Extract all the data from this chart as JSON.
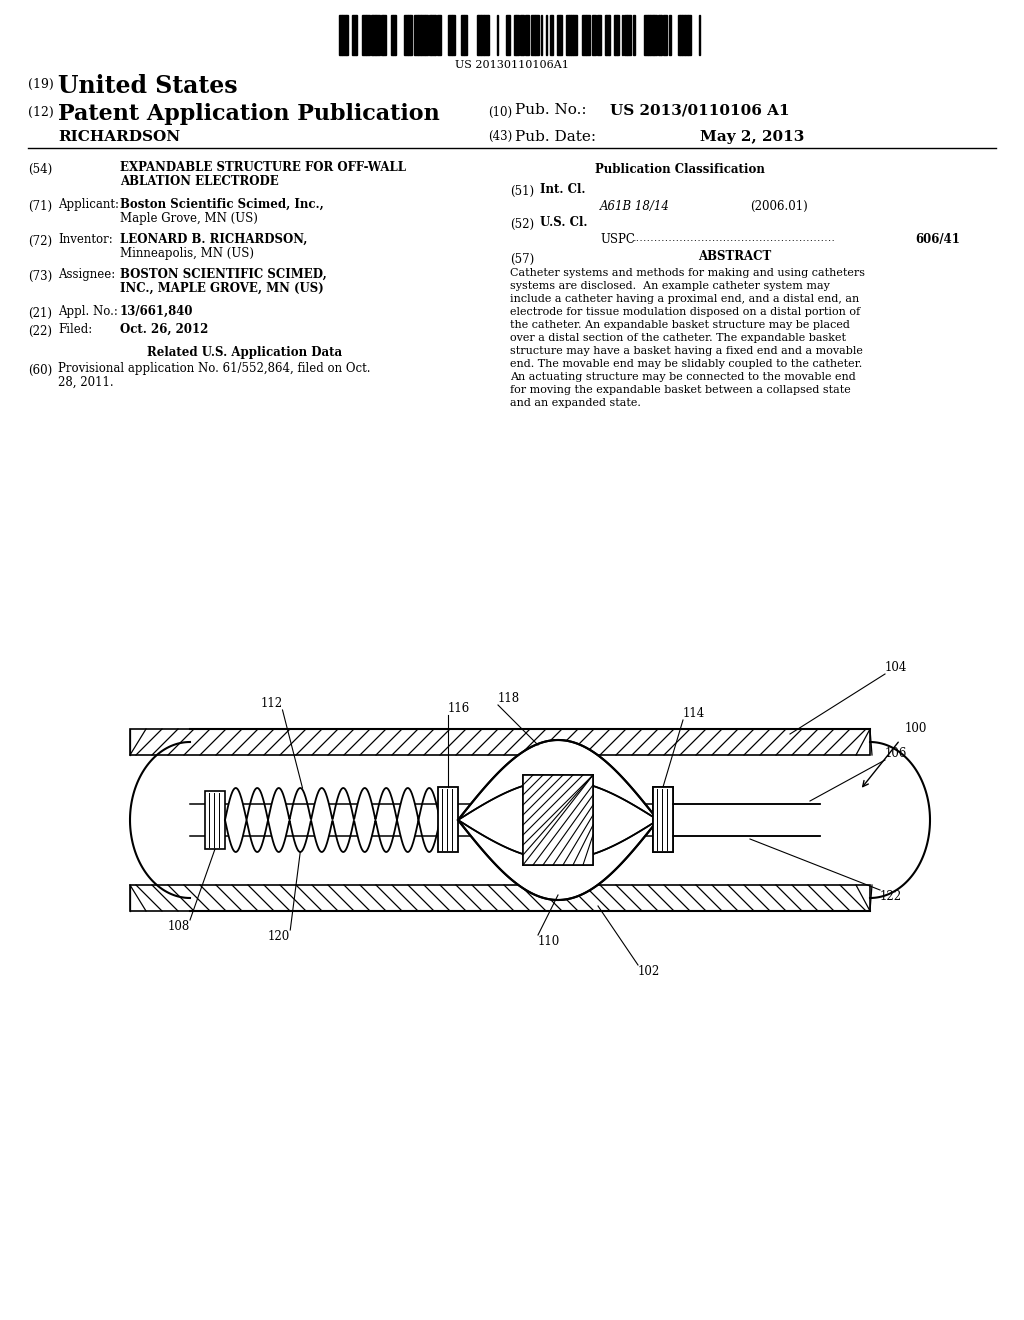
{
  "background_color": "#ffffff",
  "barcode_text": "US 20130110106A1",
  "abstract_lines": [
    "Catheter systems and methods for making and using catheters",
    "systems are disclosed.  An example catheter system may",
    "include a catheter having a proximal end, and a distal end, an",
    "electrode for tissue modulation disposed on a distal portion of",
    "the catheter. An expandable basket structure may be placed",
    "over a distal section of the catheter. The expandable basket",
    "structure may have a basket having a fixed end and a movable",
    "end. The movable end may be slidably coupled to the catheter.",
    "An actuating structure may be connected to the movable end",
    "for moving the expandable basket between a collapsed state",
    "and an expanded state."
  ]
}
